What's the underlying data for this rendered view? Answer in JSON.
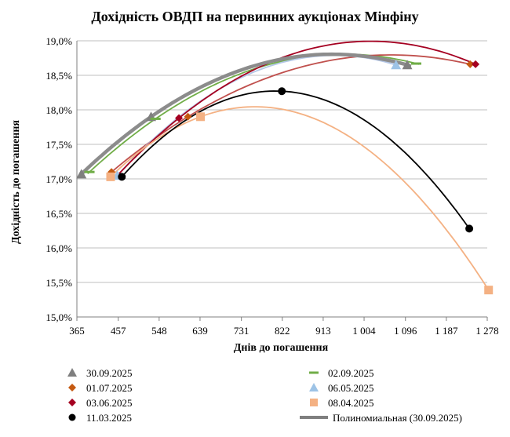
{
  "chart_data": {
    "type": "scatter",
    "title": "Дохідність ОВДП на первинних аукціонах Мінфіну",
    "xlabel": "Днів до погашення",
    "ylabel": "Дохідність до погашення",
    "xlim": [
      365,
      1278
    ],
    "ylim": [
      15.0,
      19.0
    ],
    "x_ticks": [
      {
        "value": 365,
        "label": "365"
      },
      {
        "value": 457,
        "label": "457"
      },
      {
        "value": 548,
        "label": "548"
      },
      {
        "value": 639,
        "label": "639"
      },
      {
        "value": 731,
        "label": "731"
      },
      {
        "value": 822,
        "label": "822"
      },
      {
        "value": 913,
        "label": "913"
      },
      {
        "value": 1004,
        "label": "1 004"
      },
      {
        "value": 1096,
        "label": "1 096"
      },
      {
        "value": 1187,
        "label": "1 187"
      },
      {
        "value": 1278,
        "label": "1 278"
      }
    ],
    "y_ticks": [
      {
        "value": 15.0,
        "label": "15,0%"
      },
      {
        "value": 15.5,
        "label": "15,5%"
      },
      {
        "value": 16.0,
        "label": "16,0%"
      },
      {
        "value": 16.5,
        "label": "16,5%"
      },
      {
        "value": 17.0,
        "label": "17,0%"
      },
      {
        "value": 17.5,
        "label": "17,5%"
      },
      {
        "value": 18.0,
        "label": "18,0%"
      },
      {
        "value": 18.5,
        "label": "18,5%"
      },
      {
        "value": 19.0,
        "label": "19,0%"
      }
    ],
    "grid": "horizontal",
    "series": [
      {
        "name": "30.09.2025",
        "marker": "triangle",
        "color": "#7f7f7f",
        "trend_color": "#8c8c8c",
        "points": [
          [
            375,
            17.07
          ],
          [
            530,
            17.9
          ],
          [
            1100,
            18.65
          ]
        ],
        "trend": [
          375,
          1105
        ]
      },
      {
        "name": "02.09.2025",
        "marker": "dash",
        "color": "#70ad47",
        "trend_color": "#70ad47",
        "points": [
          [
            393,
            17.1
          ],
          [
            540,
            17.87
          ],
          [
            1120,
            18.67
          ]
        ],
        "trend": [
          390,
          1125
        ]
      },
      {
        "name": "01.07.2025",
        "marker": "diamond",
        "color": "#c55a11",
        "trend_color": "#c0504d",
        "points": [
          [
            442,
            17.1
          ],
          [
            612,
            17.9
          ],
          [
            1240,
            18.66
          ]
        ],
        "trend": [
          440,
          1240
        ]
      },
      {
        "name": "06.05.2025",
        "marker": "triangle",
        "color": "#9dc3e6",
        "trend_color": "#b4c7e7",
        "points": [
          [
            455,
            17.05
          ],
          [
            1075,
            18.65
          ]
        ],
        "trend": [
          455,
          1075
        ]
      },
      {
        "name": "03.06.2025",
        "marker": "diamond",
        "color": "#a50021",
        "trend_color": "#a50021",
        "points": [
          [
            592,
            17.88
          ],
          [
            1252,
            18.66
          ]
        ],
        "trend": [
          455,
          1252
        ]
      },
      {
        "name": "08.04.2025",
        "marker": "square",
        "color": "#f4b183",
        "trend_color": "#f4b183",
        "points": [
          [
            440,
            17.03
          ],
          [
            640,
            17.9
          ],
          [
            1281,
            15.39
          ]
        ],
        "trend": [
          440,
          1281
        ]
      },
      {
        "name": "11.03.2025",
        "marker": "circle",
        "color": "#000000",
        "trend_color": "#000000",
        "points": [
          [
            465,
            17.03
          ],
          [
            821,
            18.27
          ],
          [
            1238,
            16.28
          ]
        ],
        "trend": [
          465,
          1238
        ]
      }
    ],
    "legend": [
      {
        "name": "30.09.2025",
        "marker": "triangle",
        "color": "#7f7f7f"
      },
      {
        "name": "02.09.2025",
        "marker": "dash",
        "color": "#70ad47"
      },
      {
        "name": "01.07.2025",
        "marker": "diamond",
        "color": "#c55a11"
      },
      {
        "name": "06.05.2025",
        "marker": "triangle",
        "color": "#9dc3e6"
      },
      {
        "name": "03.06.2025",
        "marker": "diamond",
        "color": "#a50021"
      },
      {
        "name": "08.04.2025",
        "marker": "square",
        "color": "#f4b183"
      },
      {
        "name": "11.03.2025",
        "marker": "circle",
        "color": "#000000"
      },
      {
        "name": "Полиномиальная (30.09.2025)",
        "marker": "thickline",
        "color": "#7f7f7f"
      }
    ]
  }
}
